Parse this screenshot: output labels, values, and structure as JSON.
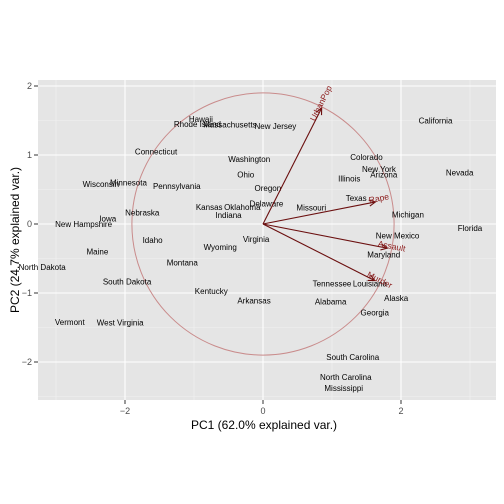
{
  "chart_data": {
    "type": "scatter",
    "subtype": "pca-biplot",
    "xlabel": "PC1 (62.0% explained var.)",
    "ylabel": "PC2 (24.7% explained var.)",
    "xlim": [
      -3.2,
      3.25
    ],
    "ylim": [
      -2.55,
      2.1
    ],
    "xticks": [
      -2,
      0,
      2
    ],
    "yticks": [
      -2,
      -1,
      0,
      1,
      2
    ],
    "grid": true,
    "circle_radius": 1.9,
    "colors": {
      "panel": "#e5e5e5",
      "grid_major": "#ffffff",
      "grid_minor": "#f2f2f2",
      "arrow": "#6b0f0f",
      "arrow_label": "#8b1a1a",
      "circle": "#c98b8b"
    },
    "points": [
      {
        "label": "Hawaii",
        "x": -0.9,
        "y": 1.52
      },
      {
        "label": "Rhode Island",
        "x": -0.95,
        "y": 1.45
      },
      {
        "label": "Massachusetts",
        "x": -0.48,
        "y": 1.44
      },
      {
        "label": "New Jersey",
        "x": 0.18,
        "y": 1.42
      },
      {
        "label": "California",
        "x": 2.5,
        "y": 1.5
      },
      {
        "label": "Connecticut",
        "x": -1.55,
        "y": 1.05
      },
      {
        "label": "Washington",
        "x": -0.2,
        "y": 0.94
      },
      {
        "label": "Colorado",
        "x": 1.5,
        "y": 0.97
      },
      {
        "label": "New York",
        "x": 1.68,
        "y": 0.8
      },
      {
        "label": "Arizona",
        "x": 1.75,
        "y": 0.72
      },
      {
        "label": "Illinois",
        "x": 1.25,
        "y": 0.66
      },
      {
        "label": "Nevada",
        "x": 2.85,
        "y": 0.75
      },
      {
        "label": "Ohio",
        "x": -0.25,
        "y": 0.72
      },
      {
        "label": "Wisconsin",
        "x": -2.35,
        "y": 0.58
      },
      {
        "label": "Minnesota",
        "x": -1.95,
        "y": 0.6
      },
      {
        "label": "Pennsylvania",
        "x": -1.25,
        "y": 0.55
      },
      {
        "label": "Oregon",
        "x": 0.07,
        "y": 0.52
      },
      {
        "label": "Texas",
        "x": 1.35,
        "y": 0.38
      },
      {
        "label": "Delaware",
        "x": 0.05,
        "y": 0.3
      },
      {
        "label": "Kansas",
        "x": -0.78,
        "y": 0.25
      },
      {
        "label": "Oklahoma",
        "x": -0.3,
        "y": 0.25
      },
      {
        "label": "Missouri",
        "x": 0.7,
        "y": 0.24
      },
      {
        "label": "Nebraska",
        "x": -1.75,
        "y": 0.17
      },
      {
        "label": "Indiana",
        "x": -0.5,
        "y": 0.13
      },
      {
        "label": "Michigan",
        "x": 2.1,
        "y": 0.14
      },
      {
        "label": "Iowa",
        "x": -2.25,
        "y": 0.08
      },
      {
        "label": "New Hampshire",
        "x": -2.6,
        "y": 0.0
      },
      {
        "label": "Florida",
        "x": 3.0,
        "y": -0.06
      },
      {
        "label": "New Mexico",
        "x": 1.95,
        "y": -0.17
      },
      {
        "label": "Idaho",
        "x": -1.6,
        "y": -0.23
      },
      {
        "label": "Virginia",
        "x": -0.1,
        "y": -0.22
      },
      {
        "label": "Wyoming",
        "x": -0.62,
        "y": -0.33
      },
      {
        "label": "Maine",
        "x": -2.4,
        "y": -0.4
      },
      {
        "label": "Maryland",
        "x": 1.75,
        "y": -0.44
      },
      {
        "label": "Montana",
        "x": -1.17,
        "y": -0.56
      },
      {
        "label": "North Dakota",
        "x": -3.2,
        "y": -0.62
      },
      {
        "label": "South Dakota",
        "x": -1.97,
        "y": -0.83
      },
      {
        "label": "Tennessee",
        "x": 1.0,
        "y": -0.86
      },
      {
        "label": "Louisiana",
        "x": 1.55,
        "y": -0.86
      },
      {
        "label": "Kentucky",
        "x": -0.75,
        "y": -0.97
      },
      {
        "label": "Alaska",
        "x": 1.93,
        "y": -1.07
      },
      {
        "label": "Arkansas",
        "x": -0.13,
        "y": -1.11
      },
      {
        "label": "Alabama",
        "x": 0.98,
        "y": -1.12
      },
      {
        "label": "Georgia",
        "x": 1.62,
        "y": -1.28
      },
      {
        "label": "Vermont",
        "x": -2.8,
        "y": -1.42
      },
      {
        "label": "West Virginia",
        "x": -2.07,
        "y": -1.43
      },
      {
        "label": "South Carolina",
        "x": 1.3,
        "y": -1.93
      },
      {
        "label": "North Carolina",
        "x": 1.2,
        "y": -2.22
      },
      {
        "label": "Mississippi",
        "x": 1.17,
        "y": -2.38
      }
    ],
    "loadings": [
      {
        "label": "UrbanPop",
        "x": 0.85,
        "y": 1.68
      },
      {
        "label": "Rape",
        "x": 1.63,
        "y": 0.32
      },
      {
        "label": "Assault",
        "x": 1.8,
        "y": -0.35
      },
      {
        "label": "Murder",
        "x": 1.62,
        "y": -0.82
      }
    ]
  }
}
